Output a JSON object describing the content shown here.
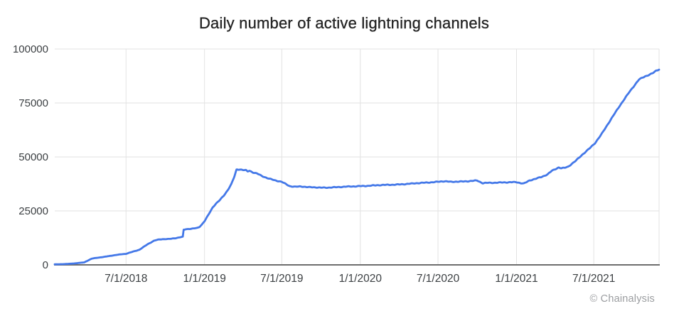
{
  "title": "Daily number of active lightning channels",
  "watermark": {
    "symbol": "©",
    "text": "Chainalysis",
    "color": "#9b9da0"
  },
  "chart_data": {
    "type": "line",
    "title": "Daily number of active lightning channels",
    "series_name": "active lightning channels",
    "xlabel": "",
    "ylabel": "",
    "x_start": "2018-01-15",
    "x_end": "2021-12-01",
    "ylim": [
      0,
      100000
    ],
    "y_ticks": [
      0,
      25000,
      50000,
      75000,
      100000
    ],
    "y_tick_labels": [
      "0",
      "25000",
      "50000",
      "75000",
      "100000"
    ],
    "x_ticks": [
      {
        "date": "2018-07-01",
        "label": "7/1/2018"
      },
      {
        "date": "2019-01-01",
        "label": "1/1/2019"
      },
      {
        "date": "2019-07-01",
        "label": "7/1/2019"
      },
      {
        "date": "2020-01-01",
        "label": "1/1/2020"
      },
      {
        "date": "2020-07-01",
        "label": "7/1/2020"
      },
      {
        "date": "2021-01-01",
        "label": "1/1/2021"
      },
      {
        "date": "2021-07-01",
        "label": "7/1/2021"
      }
    ],
    "grid": true,
    "legend": false,
    "line_color": "#4478e8",
    "grid_color": "#e2e2e2",
    "axis_color": "#6e6e6e",
    "label_color": "#3c4043",
    "points": [
      [
        "2018-01-15",
        250
      ],
      [
        "2018-02-05",
        350
      ],
      [
        "2018-03-01",
        650
      ],
      [
        "2018-03-15",
        950
      ],
      [
        "2018-03-25",
        1150
      ],
      [
        "2018-04-12",
        2900
      ],
      [
        "2018-04-25",
        3300
      ],
      [
        "2018-05-10",
        3700
      ],
      [
        "2018-06-01",
        4400
      ],
      [
        "2018-06-20",
        4900
      ],
      [
        "2018-07-01",
        5100
      ],
      [
        "2018-07-15",
        6000
      ],
      [
        "2018-08-01",
        7000
      ],
      [
        "2018-08-20",
        9500
      ],
      [
        "2018-09-05",
        11200
      ],
      [
        "2018-09-15",
        11700
      ],
      [
        "2018-09-25",
        11900
      ],
      [
        "2018-10-10",
        12000
      ],
      [
        "2018-10-25",
        12400
      ],
      [
        "2018-11-05",
        12800
      ],
      [
        "2018-11-11",
        13000
      ],
      [
        "2018-11-13",
        16200
      ],
      [
        "2018-11-18",
        16500
      ],
      [
        "2018-12-01",
        16700
      ],
      [
        "2018-12-15",
        17100
      ],
      [
        "2018-12-20",
        17600
      ],
      [
        "2018-12-26",
        18800
      ],
      [
        "2019-01-01",
        20300
      ],
      [
        "2019-01-10",
        23200
      ],
      [
        "2019-01-20",
        26600
      ],
      [
        "2019-01-28",
        28400
      ],
      [
        "2019-02-05",
        29800
      ],
      [
        "2019-02-15",
        32000
      ],
      [
        "2019-02-25",
        34800
      ],
      [
        "2019-03-05",
        37500
      ],
      [
        "2019-03-12",
        41000
      ],
      [
        "2019-03-17",
        44200
      ],
      [
        "2019-03-24",
        44300
      ],
      [
        "2019-04-01",
        44000
      ],
      [
        "2019-04-08",
        43800
      ],
      [
        "2019-04-12",
        43200
      ],
      [
        "2019-04-16",
        43600
      ],
      [
        "2019-04-24",
        42800
      ],
      [
        "2019-05-05",
        42200
      ],
      [
        "2019-05-15",
        41200
      ],
      [
        "2019-06-01",
        40000
      ],
      [
        "2019-06-15",
        39200
      ],
      [
        "2019-07-01",
        38400
      ],
      [
        "2019-07-10",
        37400
      ],
      [
        "2019-07-20",
        36400
      ],
      [
        "2019-08-01",
        36200
      ],
      [
        "2019-08-15",
        36400
      ],
      [
        "2019-09-01",
        36000
      ],
      [
        "2019-09-15",
        35900
      ],
      [
        "2019-10-01",
        35700
      ],
      [
        "2019-10-15",
        35800
      ],
      [
        "2019-11-01",
        36000
      ],
      [
        "2019-11-15",
        36100
      ],
      [
        "2019-12-01",
        36200
      ],
      [
        "2019-12-15",
        36300
      ],
      [
        "2020-01-01",
        36500
      ],
      [
        "2020-02-01",
        36800
      ],
      [
        "2020-03-01",
        37000
      ],
      [
        "2020-04-01",
        37300
      ],
      [
        "2020-05-01",
        37600
      ],
      [
        "2020-06-01",
        38100
      ],
      [
        "2020-06-15",
        38300
      ],
      [
        "2020-07-01",
        38500
      ],
      [
        "2020-07-15",
        38700
      ],
      [
        "2020-08-01",
        38400
      ],
      [
        "2020-08-15",
        38600
      ],
      [
        "2020-09-01",
        38700
      ],
      [
        "2020-09-20",
        38900
      ],
      [
        "2020-10-01",
        39000
      ],
      [
        "2020-10-08",
        38300
      ],
      [
        "2020-10-14",
        37800
      ],
      [
        "2020-10-25",
        38000
      ],
      [
        "2020-11-10",
        38100
      ],
      [
        "2020-12-01",
        38200
      ],
      [
        "2020-12-15",
        38200
      ],
      [
        "2021-01-01",
        38300
      ],
      [
        "2021-01-10",
        37900
      ],
      [
        "2021-01-18",
        37700
      ],
      [
        "2021-02-01",
        39200
      ],
      [
        "2021-02-15",
        39900
      ],
      [
        "2021-03-01",
        40700
      ],
      [
        "2021-03-15",
        41900
      ],
      [
        "2021-03-25",
        43600
      ],
      [
        "2021-04-04",
        44600
      ],
      [
        "2021-04-10",
        45200
      ],
      [
        "2021-04-16",
        44800
      ],
      [
        "2021-04-24",
        45000
      ],
      [
        "2021-05-02",
        45500
      ],
      [
        "2021-05-19",
        48000
      ],
      [
        "2021-06-04",
        51000
      ],
      [
        "2021-06-21",
        54000
      ],
      [
        "2021-07-04",
        56500
      ],
      [
        "2021-07-19",
        60500
      ],
      [
        "2021-08-09",
        67000
      ],
      [
        "2021-08-31",
        73800
      ],
      [
        "2021-09-23",
        80300
      ],
      [
        "2021-10-15",
        85800
      ],
      [
        "2021-10-28",
        87200
      ],
      [
        "2021-11-06",
        87900
      ],
      [
        "2021-11-16",
        88800
      ],
      [
        "2021-11-24",
        90000
      ],
      [
        "2021-12-01",
        90600
      ]
    ]
  }
}
